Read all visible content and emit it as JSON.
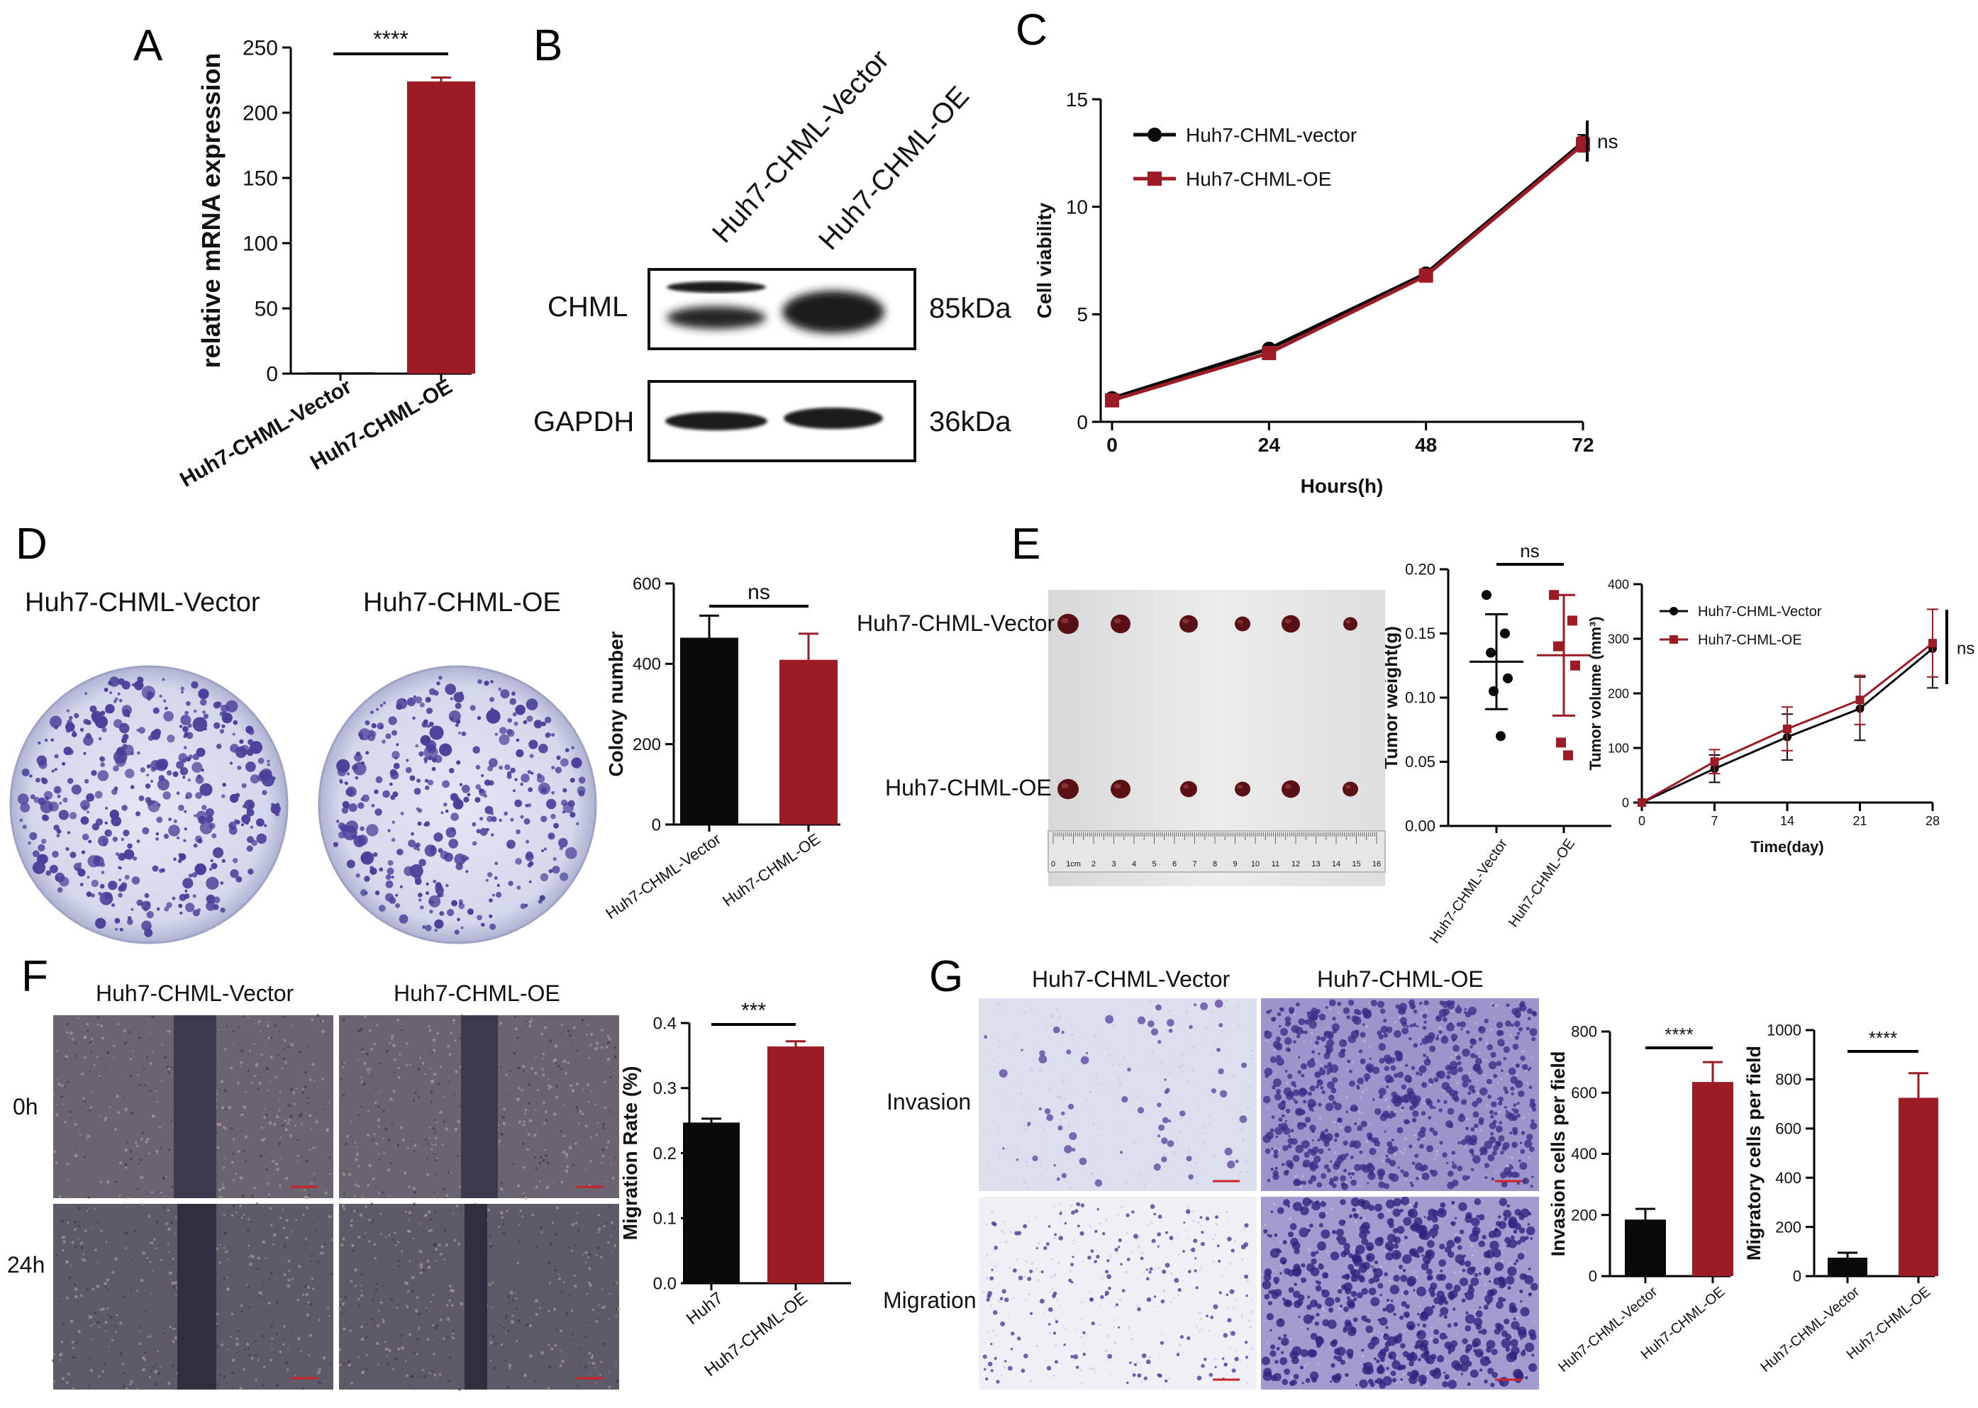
{
  "panels": {
    "A": {
      "letter": "A"
    },
    "B": {
      "letter": "B"
    },
    "C": {
      "letter": "C"
    },
    "D": {
      "letter": "D"
    },
    "E": {
      "letter": "E"
    },
    "F": {
      "letter": "F"
    },
    "G": {
      "letter": "G"
    }
  },
  "blot": {
    "lane_labels": [
      "Huh7-CHML-Vector",
      "Huh7-CHML-OE"
    ],
    "rows": [
      {
        "protein": "CHML",
        "size": "85kDa"
      },
      {
        "protein": "GAPDH",
        "size": "36kDa"
      }
    ]
  },
  "images": {
    "colony_labels": [
      "Huh7-CHML-Vector",
      "Huh7-CHML-OE"
    ],
    "tumor_row_labels": [
      "Huh7-CHML-Vector",
      "Huh7-CHML-OE"
    ],
    "ruler_numbers": [
      "0",
      "1cm",
      "2",
      "3",
      "4",
      "5",
      "6",
      "7",
      "8",
      "9",
      "10",
      "11",
      "12",
      "13",
      "14",
      "15",
      "16"
    ],
    "wound_col_labels": [
      "Huh7-CHML-Vector",
      "Huh7-CHML-OE"
    ],
    "wound_row_labels": [
      "0h",
      "24h"
    ],
    "transwell_col_labels": [
      "Huh7-CHML-Vector",
      "Huh7-CHML-OE"
    ],
    "transwell_row_labels": [
      "Invasion",
      "Migration"
    ]
  },
  "colors": {
    "vector": "#0a0a0a",
    "oe": "#9b1c24",
    "stain": "#4a3f9a"
  },
  "chart_data": [
    {
      "id": "A",
      "type": "bar",
      "categories": [
        "Huh7-CHML-Vector",
        "Huh7-CHML-OE"
      ],
      "values": [
        1,
        224
      ],
      "errors": [
        0,
        3
      ],
      "ylabel": "relative mRNA expression",
      "ylim": [
        0,
        250
      ],
      "yticks": [
        "0",
        "50",
        "100",
        "150",
        "200",
        "250"
      ],
      "significance": "****"
    },
    {
      "id": "C",
      "type": "line",
      "x": [
        0,
        24,
        48,
        72
      ],
      "xticks": [
        "0",
        "24",
        "48",
        "72"
      ],
      "yticks": [
        "0",
        "5",
        "10",
        "15"
      ],
      "series": [
        {
          "name": "Huh7-CHML-vector",
          "values": [
            1.1,
            3.4,
            6.9,
            13.0
          ],
          "errors": [
            0.1,
            0.1,
            0.2,
            0.35
          ]
        },
        {
          "name": "Huh7-CHML-OE",
          "values": [
            1.0,
            3.2,
            6.8,
            12.9
          ],
          "errors": [
            0.1,
            0.1,
            0.2,
            0.35
          ]
        }
      ],
      "xlabel": "Hours(h)",
      "ylabel": "Cell viability",
      "ylim": [
        0,
        15
      ],
      "xlim": [
        0,
        72
      ],
      "legend": "top-left",
      "significance": "ns"
    },
    {
      "id": "D",
      "type": "bar",
      "categories": [
        "Huh7-CHML-Vector",
        "Huh7-CHML-OE"
      ],
      "values": [
        465,
        410
      ],
      "errors": [
        55,
        65
      ],
      "ylabel": "Colony number",
      "ylim": [
        0,
        600
      ],
      "yticks": [
        "0",
        "200",
        "400",
        "600"
      ],
      "significance": "ns"
    },
    {
      "id": "E1",
      "type": "scatter",
      "categories": [
        "Huh7-CHML-Vector",
        "Huh7-CHML-OE"
      ],
      "points": [
        [
          0.18,
          0.15,
          0.135,
          0.115,
          0.105,
          0.07
        ],
        [
          0.18,
          0.16,
          0.14,
          0.125,
          0.065,
          0.055
        ]
      ],
      "means": [
        0.128,
        0.133
      ],
      "sds": [
        0.037,
        0.047
      ],
      "ylabel": "Tumor weight(g)",
      "ylim": [
        0,
        0.2
      ],
      "yticks": [
        "0.00",
        "0.05",
        "0.10",
        "0.15",
        "0.20"
      ],
      "significance": "ns"
    },
    {
      "id": "E2",
      "type": "line",
      "x": [
        0,
        7,
        14,
        21,
        28
      ],
      "xticks": [
        "0",
        "7",
        "14",
        "21",
        "28"
      ],
      "yticks": [
        "0",
        "100",
        "200",
        "300",
        "400"
      ],
      "series": [
        {
          "name": "Huh7-CHML-Vector",
          "values": [
            0,
            62,
            120,
            172,
            282
          ],
          "errors": [
            0,
            25,
            42,
            58,
            72
          ]
        },
        {
          "name": "Huh7-CHML-OE",
          "values": [
            0,
            75,
            135,
            188,
            292
          ],
          "errors": [
            0,
            22,
            40,
            45,
            62
          ]
        }
      ],
      "xlabel": "Time(day)",
      "ylabel": "Tumor volume (mm³)",
      "ylim": [
        0,
        400
      ],
      "xlim": [
        0,
        28
      ],
      "legend": "top-left",
      "significance": "ns"
    },
    {
      "id": "F",
      "type": "bar",
      "categories": [
        "Huh7",
        "Huh7-CHML-OE"
      ],
      "values": [
        0.247,
        0.364
      ],
      "errors": [
        0.006,
        0.008
      ],
      "ylabel": "Migration Rate (%)",
      "ylim": [
        0,
        0.4
      ],
      "yticks": [
        "0.0",
        "0.1",
        "0.2",
        "0.3",
        "0.4"
      ],
      "significance": "***"
    },
    {
      "id": "G1",
      "type": "bar",
      "categories": [
        "Huh7-CHML-Vector",
        "Huh7-CHML-OE"
      ],
      "values": [
        185,
        635
      ],
      "errors": [
        35,
        65
      ],
      "ylabel": "Invasion cells per field",
      "ylim": [
        0,
        800
      ],
      "yticks": [
        "0",
        "200",
        "400",
        "600",
        "800"
      ],
      "significance": "****"
    },
    {
      "id": "G2",
      "type": "bar",
      "categories": [
        "Huh7-CHML-Vector",
        "Huh7-CHML-OE"
      ],
      "values": [
        75,
        725
      ],
      "errors": [
        20,
        100
      ],
      "ylabel": "Migratory cells per field",
      "ylim": [
        0,
        1000
      ],
      "yticks": [
        "0",
        "200",
        "400",
        "600",
        "800",
        "1000"
      ],
      "significance": "****"
    }
  ]
}
